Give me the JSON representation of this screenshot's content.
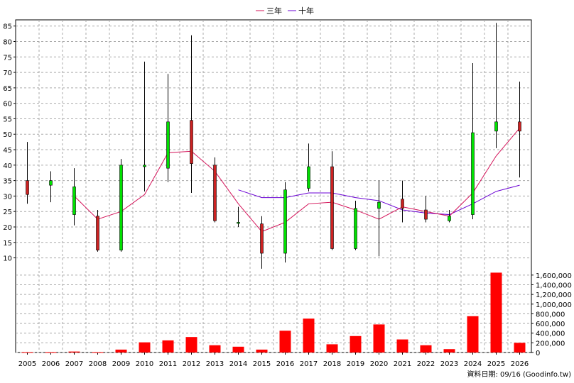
{
  "chart_data": {
    "type": "candlestick+bar+line",
    "legend": [
      {
        "name": "三年",
        "color": "#d4145a"
      },
      {
        "name": "十年",
        "color": "#6a00d4"
      }
    ],
    "legend_position": "top-center",
    "years": [
      "2005",
      "2006",
      "2007",
      "2008",
      "2009",
      "2010",
      "2011",
      "2012",
      "2013",
      "2014",
      "2015",
      "2016",
      "2017",
      "2018",
      "2019",
      "2020",
      "2021",
      "2022",
      "2023",
      "2024",
      "2025",
      "2026"
    ],
    "price_axis": {
      "min": 6,
      "max": 87,
      "ticks": [
        10,
        15,
        20,
        25,
        30,
        35,
        40,
        45,
        50,
        55,
        60,
        65,
        70,
        75,
        80,
        85
      ],
      "position": "left"
    },
    "volume_axis": {
      "min": 0,
      "max": 1700000,
      "ticks": [
        0,
        200000,
        400000,
        600000,
        800000,
        1000000,
        1200000,
        1400000,
        1600000
      ],
      "tick_labels": [
        "0",
        "200,000",
        "400,000",
        "600,000",
        "800,000",
        "1,000,000",
        "1,200,000",
        "1,400,000",
        "1,600,000"
      ],
      "position": "right"
    },
    "candles": [
      {
        "year": "2005",
        "open": 35,
        "close": 30.5,
        "high": 47.5,
        "low": 27.5
      },
      {
        "year": "2006",
        "open": 33.5,
        "close": 35,
        "high": 38,
        "low": 28
      },
      {
        "year": "2007",
        "open": 24,
        "close": 33,
        "high": 39,
        "low": 20.5
      },
      {
        "year": "2008",
        "open": 23.5,
        "close": 12.5,
        "high": 25.5,
        "low": 12
      },
      {
        "year": "2009",
        "open": 12.5,
        "close": 40,
        "high": 42,
        "low": 12
      },
      {
        "year": "2010",
        "open": 39.5,
        "close": 40,
        "high": 73.5,
        "low": 31.5
      },
      {
        "year": "2011",
        "open": 39,
        "close": 54,
        "high": 69.5,
        "low": 34.5
      },
      {
        "year": "2012",
        "open": 54.5,
        "close": 40.5,
        "high": 82,
        "low": 31
      },
      {
        "year": "2013",
        "open": 40,
        "close": 22,
        "high": 42.5,
        "low": 21.5
      },
      {
        "year": "2014",
        "open": 21.5,
        "close": 21.5,
        "high": 26.5,
        "low": 20
      },
      {
        "year": "2015",
        "open": 21,
        "close": 11.5,
        "high": 23.5,
        "low": 6.5
      },
      {
        "year": "2016",
        "open": 11.5,
        "close": 32,
        "high": 34.5,
        "low": 8.5
      },
      {
        "year": "2017",
        "open": 32.5,
        "close": 39.5,
        "high": 47,
        "low": 31.5
      },
      {
        "year": "2018",
        "open": 39.5,
        "close": 13,
        "high": 44.5,
        "low": 12.5
      },
      {
        "year": "2019",
        "open": 13,
        "close": 26,
        "high": 28.5,
        "low": 12.5
      },
      {
        "year": "2020",
        "open": 26,
        "close": 28,
        "high": 35,
        "low": 10.5
      },
      {
        "year": "2021",
        "open": 29,
        "close": 26,
        "high": 35,
        "low": 21.5
      },
      {
        "year": "2022",
        "open": 25.5,
        "close": 22.5,
        "high": 30,
        "low": 21.5
      },
      {
        "year": "2023",
        "open": 22,
        "close": 23.5,
        "high": 25.5,
        "low": 21.5
      },
      {
        "year": "2024",
        "open": 24,
        "close": 50.5,
        "high": 73,
        "low": 22.5
      },
      {
        "year": "2025",
        "open": 51,
        "close": 54,
        "high": 86,
        "low": 45.5
      },
      {
        "year": "2026",
        "open": 54,
        "close": 51,
        "high": 67,
        "low": 36
      }
    ],
    "three_year_avg": [
      null,
      null,
      30,
      22.5,
      25,
      30.5,
      44,
      44.5,
      38,
      27.5,
      18.5,
      21.5,
      27.5,
      28,
      25.5,
      22.5,
      26.5,
      25,
      23.5,
      31,
      43,
      52
    ],
    "ten_year_avg": [
      null,
      null,
      null,
      null,
      null,
      null,
      null,
      null,
      null,
      32,
      29.5,
      29.5,
      31,
      31,
      29.5,
      28.5,
      25.5,
      24.5,
      24,
      27.5,
      31.5,
      33.5
    ],
    "volume": [
      5000,
      5000,
      20000,
      5000,
      60000,
      210000,
      250000,
      320000,
      150000,
      120000,
      60000,
      450000,
      700000,
      170000,
      340000,
      580000,
      270000,
      150000,
      70000,
      750000,
      1650000,
      200000
    ],
    "volume_color": "#ff0000",
    "grid": true,
    "footer_text": "資料日期: 09/16  (Goodinfo.tw)"
  }
}
